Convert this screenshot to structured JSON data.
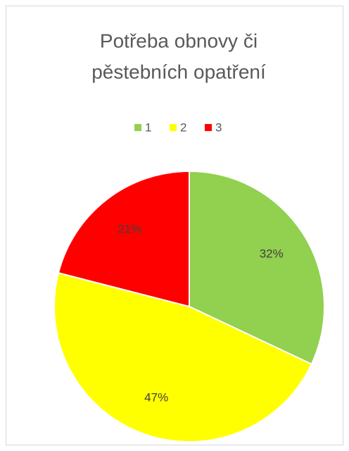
{
  "chart_data": {
    "type": "pie",
    "title": [
      "Potřeba obnovy či",
      "pěstebních opatření"
    ],
    "categories": [
      "1",
      "2",
      "3"
    ],
    "values": [
      32,
      47,
      21
    ],
    "value_labels": [
      "32%",
      "47%",
      "21%"
    ],
    "colors": [
      "#92d050",
      "#ffff00",
      "#ff0000"
    ],
    "legend": "top"
  }
}
